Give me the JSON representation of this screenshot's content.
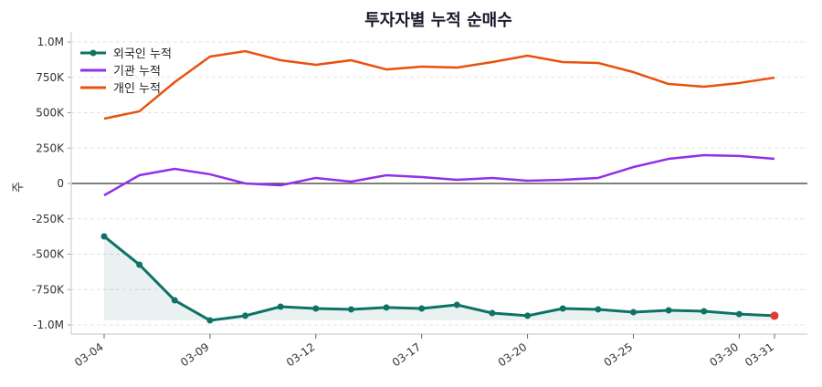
{
  "chart_data": {
    "type": "line",
    "title": "투자자별 누적 순매수",
    "xlabel": "",
    "ylabel": "주",
    "ylim": [
      -1050000,
      1100000
    ],
    "yticks": [
      1000000,
      750000,
      500000,
      250000,
      0,
      -250000,
      -500000,
      -750000,
      -1000000
    ],
    "ytick_labels": [
      "1.0M",
      "750K",
      "500K",
      "250K",
      "0",
      "-250K",
      "-500K",
      "-750K",
      "-1.0M"
    ],
    "x": [
      "03-04",
      "03-05",
      "03-06",
      "03-09",
      "03-10",
      "03-11",
      "03-12",
      "03-13",
      "03-16",
      "03-17",
      "03-18",
      "03-19",
      "03-20",
      "03-23",
      "03-24",
      "03-25",
      "03-26",
      "03-27",
      "03-30",
      "03-31"
    ],
    "xtick_labels": [
      "03-04",
      "03-09",
      "03-12",
      "03-17",
      "03-20",
      "03-25",
      "03-30",
      "03-31"
    ],
    "grid": "horizontal dashed",
    "zero_line": true,
    "legend_placement": "top-left",
    "series": [
      {
        "name": "외국인 누적",
        "color": "#0f7266",
        "markers": true,
        "fill": true,
        "last_point_color": "#e53935",
        "values": [
          -374000,
          -574000,
          -826000,
          -968000,
          -935000,
          -871000,
          -884000,
          -890000,
          -877000,
          -884000,
          -858000,
          -916000,
          -935000,
          -884000,
          -890000,
          -910000,
          -897000,
          -903000,
          -923000,
          -935000
        ]
      },
      {
        "name": "기관 누적",
        "color": "#9130e8",
        "markers": false,
        "values": [
          -84000,
          58000,
          103000,
          65000,
          0,
          -13000,
          39000,
          13000,
          58000,
          45000,
          26000,
          39000,
          19000,
          26000,
          39000,
          116000,
          174000,
          200000,
          194000,
          174000
        ]
      },
      {
        "name": "개인 누적",
        "color": "#e8520c",
        "markers": false,
        "values": [
          458000,
          510000,
          716000,
          897000,
          935000,
          871000,
          839000,
          871000,
          806000,
          826000,
          819000,
          858000,
          903000,
          858000,
          852000,
          787000,
          703000,
          684000,
          710000,
          748000
        ]
      }
    ]
  }
}
